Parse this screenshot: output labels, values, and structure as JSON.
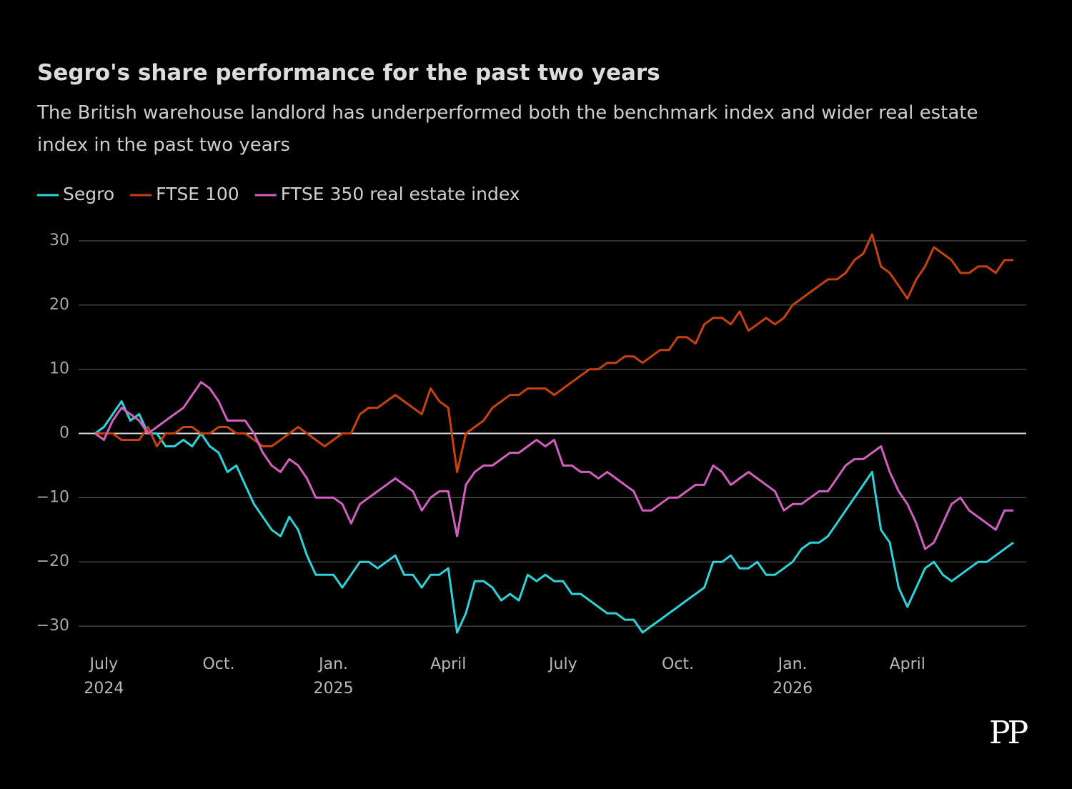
{
  "chart_data": {
    "type": "line",
    "title": "Segro's share performance for the past two years",
    "subtitle": "The British warehouse landlord has underperformed both the benchmark index and wider real estate index in the past two years",
    "logo": "PP",
    "legend": "top-left",
    "grid": true,
    "ylim": [
      -33,
      33
    ],
    "yticks": [
      {
        "value": -30,
        "label": "−30"
      },
      {
        "value": -20,
        "label": "−20"
      },
      {
        "value": -10,
        "label": "−10"
      },
      0,
      10,
      20,
      30
    ],
    "categories": [
      null,
      "July\n2024",
      null,
      null,
      null,
      null,
      null,
      null,
      null,
      null,
      null,
      null,
      null,
      null,
      "Oct.",
      null,
      null,
      null,
      null,
      null,
      null,
      null,
      null,
      null,
      null,
      null,
      null,
      "Jan.\n2025",
      null,
      null,
      null,
      null,
      null,
      null,
      null,
      null,
      null,
      null,
      null,
      null,
      "April",
      null,
      null,
      null,
      null,
      null,
      null,
      null,
      null,
      null,
      null,
      null,
      null,
      "July",
      null,
      null,
      null,
      null,
      null,
      null,
      null,
      null,
      null,
      null,
      null,
      null,
      "Oct.",
      null,
      null,
      null,
      null,
      null,
      null,
      null,
      null,
      null,
      null,
      null,
      null,
      "Jan.\n2026",
      null,
      null,
      null,
      null,
      null,
      null,
      null,
      null,
      null,
      null,
      null,
      null,
      "April",
      null,
      null,
      null,
      null,
      null,
      null,
      null,
      null,
      null,
      null,
      null,
      null
    ],
    "series": [
      {
        "name": "Segro",
        "color": "#2cd3d8",
        "values": [
          0,
          1,
          3,
          5,
          2,
          3,
          0,
          0,
          -2,
          -2,
          -1,
          -2,
          0,
          -2,
          -3,
          -6,
          -5,
          -8,
          -11,
          -13,
          -15,
          -16,
          -13,
          -15,
          -19,
          -22,
          -22,
          -22,
          -24,
          -22,
          -20,
          -20,
          -21,
          -20,
          -19,
          -22,
          -22,
          -24,
          -22,
          -22,
          -21,
          -31,
          -28,
          -23,
          -23,
          -24,
          -26,
          -25,
          -26,
          -22,
          -23,
          -22,
          -23,
          -23,
          -25,
          -25,
          -26,
          -27,
          -28,
          -28,
          -29,
          -29,
          -31,
          -30,
          -29,
          -28,
          -27,
          -26,
          -25,
          -24,
          -20,
          -20,
          -19,
          -21,
          -21,
          -20,
          -22,
          -22,
          -21,
          -20,
          -18,
          -17,
          -17,
          -16,
          -14,
          -12,
          -10,
          -8,
          -6,
          -15,
          -17,
          -24,
          -27,
          -24,
          -21,
          -20,
          -22,
          -23,
          -22,
          -21,
          -20,
          -20,
          -19,
          -18,
          -17
        ]
      },
      {
        "name": "FTSE 100",
        "color": "#c8420f",
        "values": [
          0,
          0,
          0,
          -1,
          -1,
          -1,
          1,
          -2,
          0,
          0,
          1,
          1,
          0,
          0,
          1,
          1,
          0,
          0,
          -1,
          -2,
          -2,
          -1,
          0,
          1,
          0,
          -1,
          -2,
          -1,
          0,
          0,
          3,
          4,
          4,
          5,
          6,
          5,
          4,
          3,
          7,
          5,
          4,
          -6,
          0,
          1,
          2,
          4,
          5,
          6,
          6,
          7,
          7,
          7,
          6,
          7,
          8,
          9,
          10,
          10,
          11,
          11,
          12,
          12,
          11,
          12,
          13,
          13,
          15,
          15,
          14,
          17,
          18,
          18,
          17,
          19,
          16,
          17,
          18,
          17,
          18,
          20,
          21,
          22,
          23,
          24,
          24,
          25,
          27,
          28,
          31,
          26,
          25,
          23,
          21,
          24,
          26,
          29,
          28,
          27,
          25,
          25,
          26,
          26,
          25,
          27,
          27
        ]
      },
      {
        "name": "FTSE 350 real estate index",
        "color": "#d15fbe",
        "values": [
          0,
          -1,
          2,
          4,
          3,
          2,
          0,
          1,
          2,
          3,
          4,
          6,
          8,
          7,
          5,
          2,
          2,
          2,
          0,
          -3,
          -5,
          -6,
          -4,
          -5,
          -7,
          -10,
          -10,
          -10,
          -11,
          -14,
          -11,
          -10,
          -9,
          -8,
          -7,
          -8,
          -9,
          -12,
          -10,
          -9,
          -9,
          -16,
          -8,
          -6,
          -5,
          -5,
          -4,
          -3,
          -3,
          -2,
          -1,
          -2,
          -1,
          -5,
          -5,
          -6,
          -6,
          -7,
          -6,
          -7,
          -8,
          -9,
          -12,
          -12,
          -11,
          -10,
          -10,
          -9,
          -8,
          -8,
          -5,
          -6,
          -8,
          -7,
          -6,
          -7,
          -8,
          -9,
          -12,
          -11,
          -11,
          -10,
          -9,
          -9,
          -7,
          -5,
          -4,
          -4,
          -3,
          -2,
          -6,
          -9,
          -11,
          -14,
          -18,
          -17,
          -14,
          -11,
          -10,
          -12,
          -13,
          -14,
          -15,
          -12,
          -12
        ]
      }
    ]
  }
}
